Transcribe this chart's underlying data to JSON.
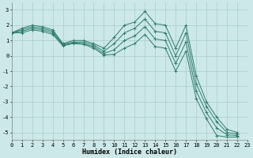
{
  "title": "",
  "xlabel": "Humidex (Indice chaleur)",
  "bg_color": "#cce8e8",
  "grid_color": "#aacccc",
  "line_color": "#2e7d6e",
  "series": [
    [
      1.5,
      1.8,
      2.0,
      1.9,
      1.7,
      0.8,
      1.0,
      1.0,
      0.8,
      0.5,
      1.2,
      2.0,
      2.2,
      2.9,
      2.1,
      2.0,
      0.5,
      2.0,
      -1.3,
      -3.0,
      -4.0,
      -4.8,
      -5.0
    ],
    [
      1.5,
      1.7,
      1.9,
      1.8,
      1.6,
      0.75,
      0.9,
      0.9,
      0.7,
      0.3,
      0.8,
      1.5,
      1.8,
      2.4,
      1.6,
      1.5,
      0.0,
      1.5,
      -1.8,
      -3.3,
      -4.3,
      -5.0,
      -5.1
    ],
    [
      1.5,
      1.6,
      1.8,
      1.7,
      1.5,
      0.7,
      0.85,
      0.8,
      0.6,
      0.15,
      0.4,
      1.0,
      1.3,
      1.9,
      1.1,
      1.0,
      -0.5,
      0.9,
      -2.3,
      -3.7,
      -4.7,
      -5.15,
      -5.2
    ],
    [
      1.5,
      1.5,
      1.7,
      1.6,
      1.4,
      0.65,
      0.8,
      0.75,
      0.5,
      0.05,
      0.1,
      0.5,
      0.8,
      1.4,
      0.6,
      0.5,
      -1.0,
      0.3,
      -2.8,
      -4.1,
      -5.2,
      -5.3,
      -5.3
    ]
  ],
  "x_values": [
    0,
    1,
    2,
    3,
    4,
    5,
    6,
    7,
    8,
    9,
    10,
    11,
    12,
    13,
    14,
    15,
    16,
    17,
    18,
    19,
    20,
    21,
    22
  ],
  "xlim": [
    0,
    23
  ],
  "ylim": [
    -5.5,
    3.5
  ],
  "yticks": [
    -5,
    -4,
    -3,
    -2,
    -1,
    0,
    1,
    2,
    3
  ],
  "xticks": [
    0,
    1,
    2,
    3,
    4,
    5,
    6,
    7,
    8,
    9,
    10,
    11,
    12,
    13,
    14,
    15,
    16,
    17,
    18,
    19,
    20,
    21,
    22,
    23
  ]
}
